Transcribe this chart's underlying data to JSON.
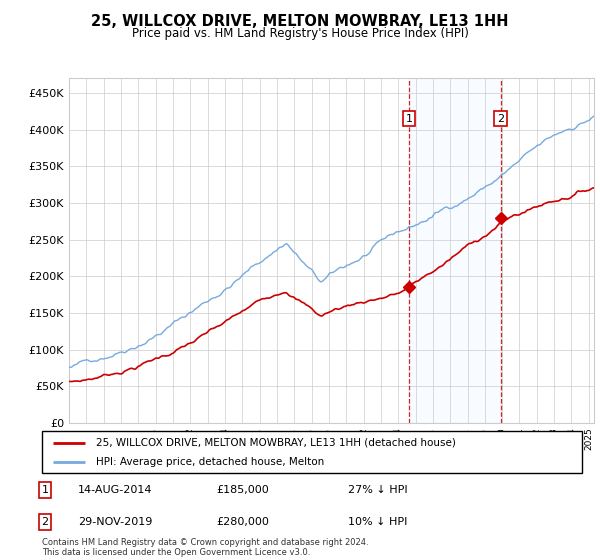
{
  "title": "25, WILLCOX DRIVE, MELTON MOWBRAY, LE13 1HH",
  "subtitle": "Price paid vs. HM Land Registry's House Price Index (HPI)",
  "legend_line1": "25, WILLCOX DRIVE, MELTON MOWBRAY, LE13 1HH (detached house)",
  "legend_line2": "HPI: Average price, detached house, Melton",
  "footnote1": "Contains HM Land Registry data © Crown copyright and database right 2024.",
  "footnote2": "This data is licensed under the Open Government Licence v3.0.",
  "sale1_date": "14-AUG-2014",
  "sale1_price": "£185,000",
  "sale1_rel": "27% ↓ HPI",
  "sale2_date": "29-NOV-2019",
  "sale2_price": "£280,000",
  "sale2_rel": "10% ↓ HPI",
  "sale1_year": 2014.62,
  "sale1_value": 185000,
  "sale2_year": 2019.92,
  "sale2_value": 280000,
  "red_color": "#cc0000",
  "blue_color": "#77aadd",
  "shade_color": "#ddeeff",
  "ylim_min": 0,
  "ylim_max": 470000
}
